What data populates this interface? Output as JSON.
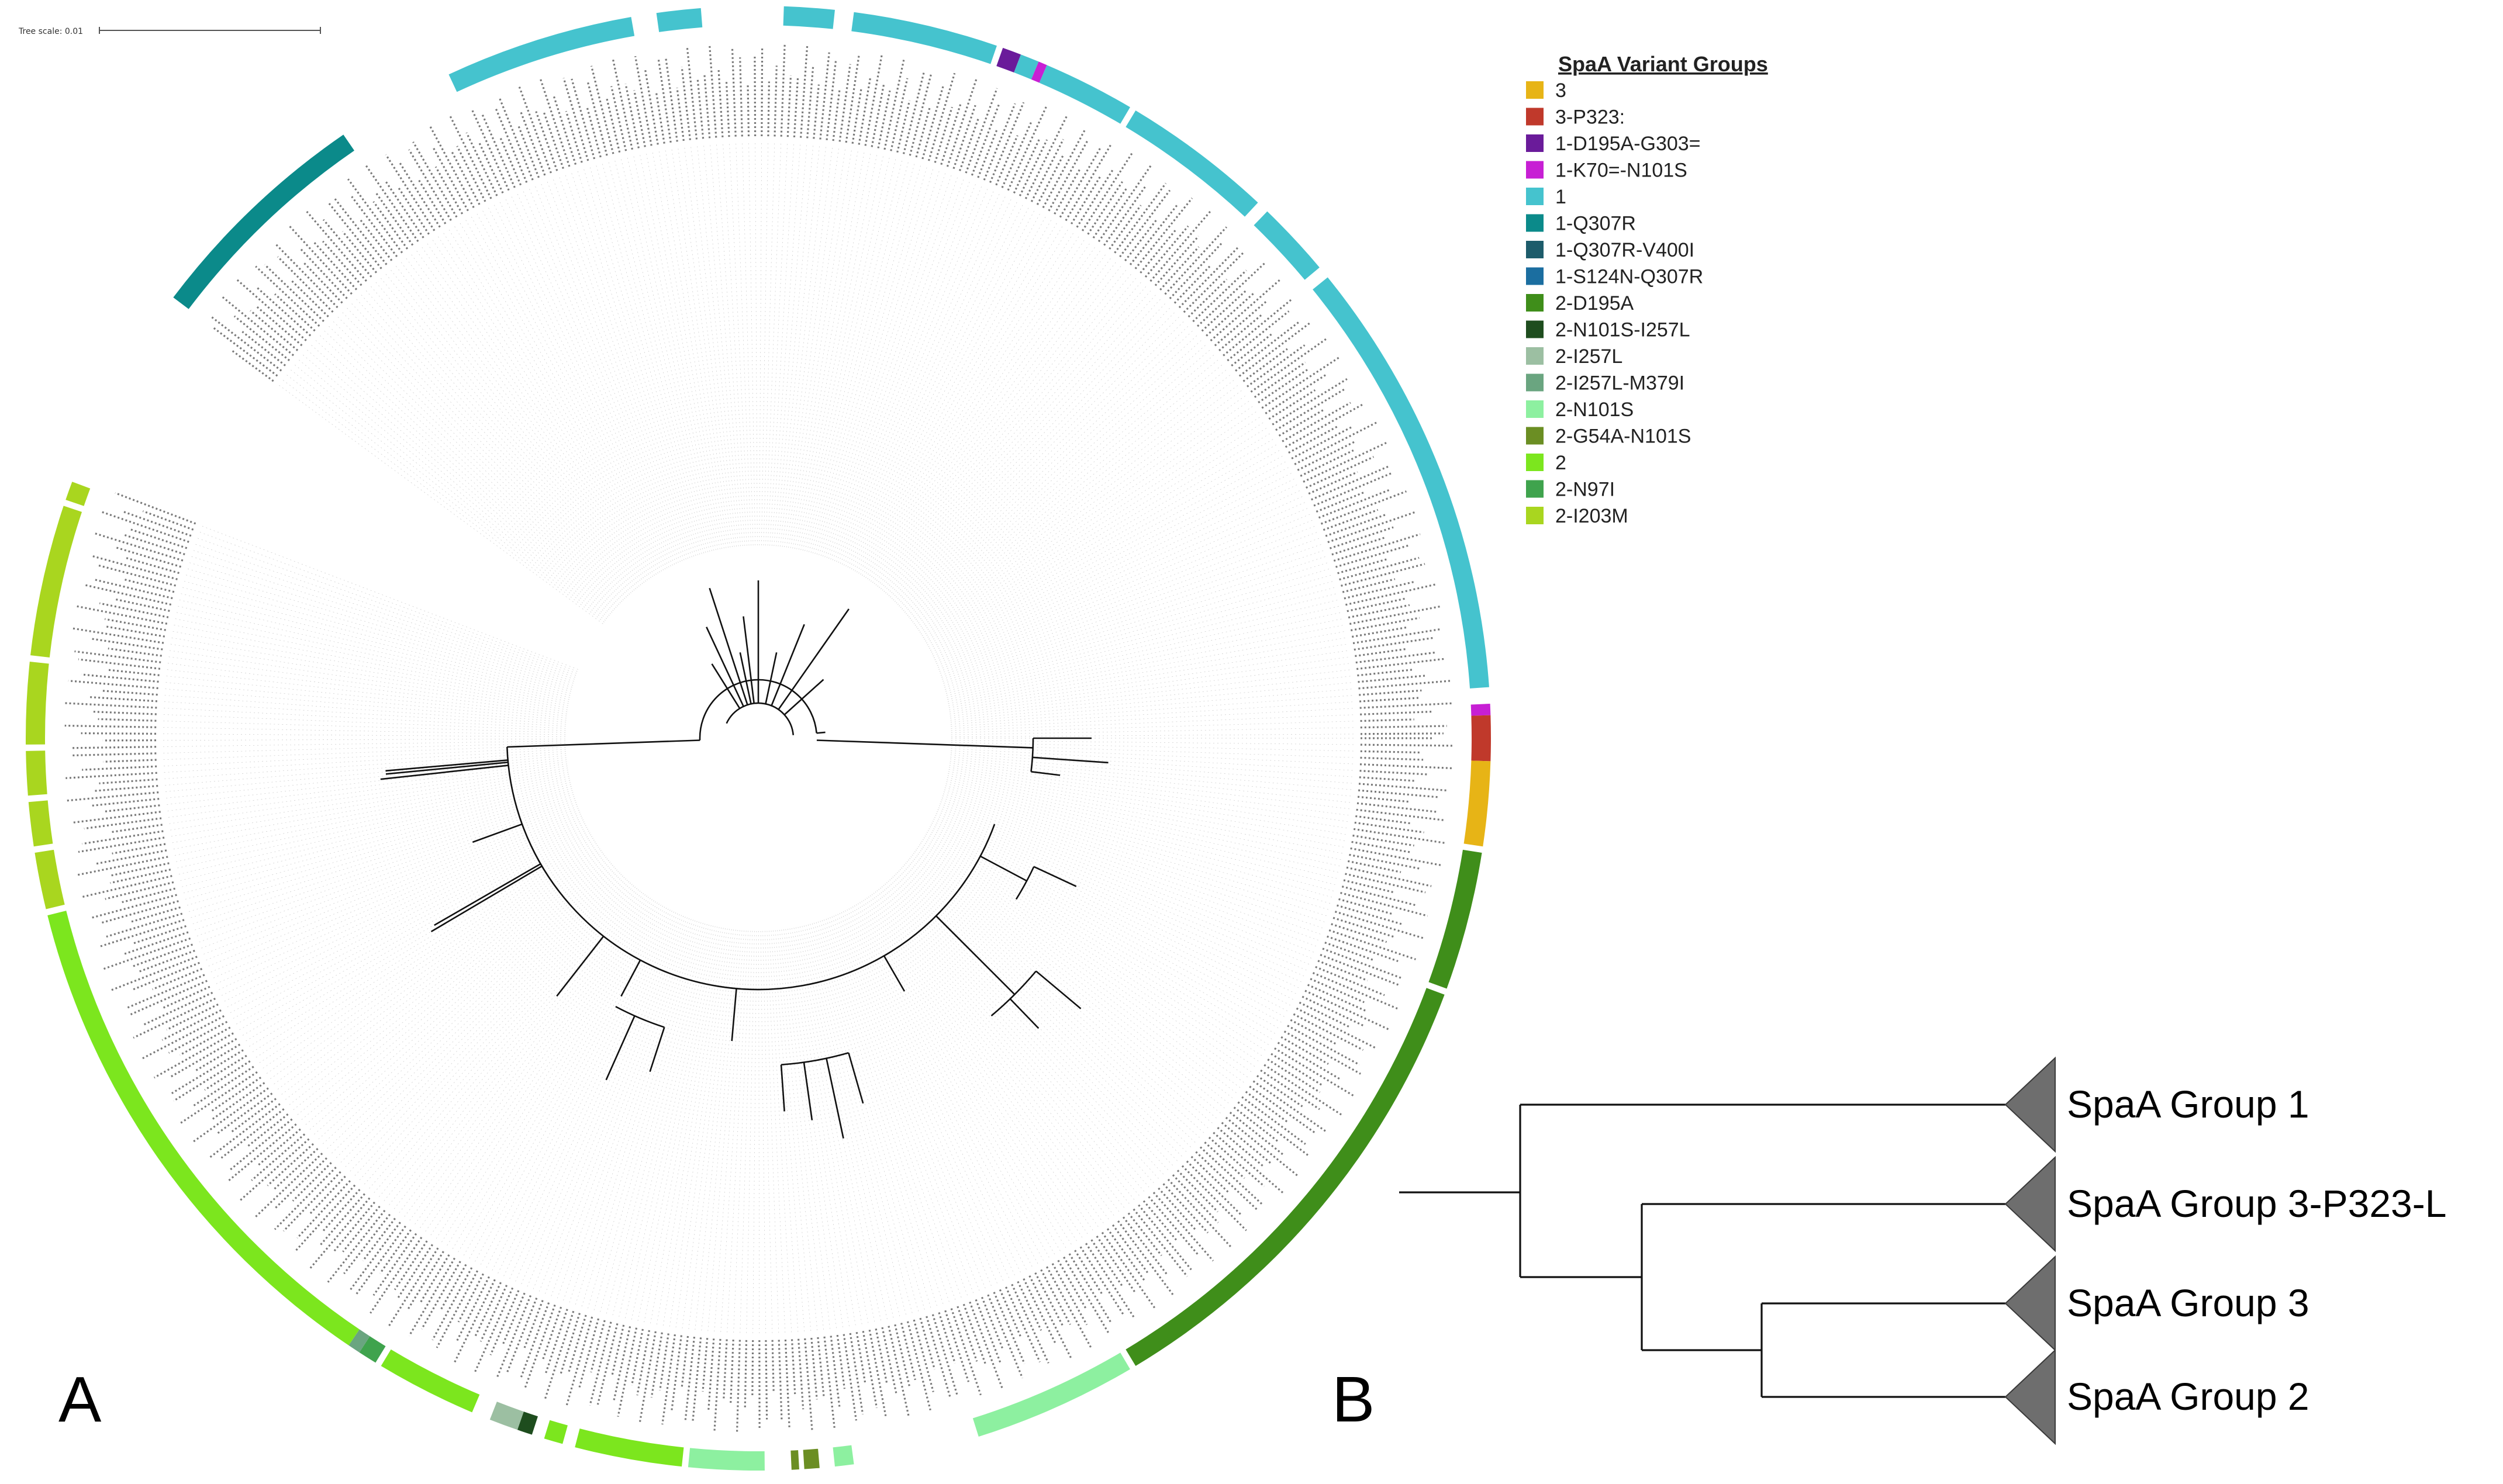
{
  "scale": {
    "label": "Tree scale: 0.01"
  },
  "panels": {
    "a_label": "A",
    "b_label": "B"
  },
  "legend": {
    "title": "SpaA Variant Groups",
    "items": [
      {
        "label": "3",
        "color": "#E7B416"
      },
      {
        "label": "3-P323:",
        "color": "#C0392B"
      },
      {
        "label": "1-D195A-G303=",
        "color": "#6A1B9A"
      },
      {
        "label": "1-K70=-N101S",
        "color": "#C71FD4"
      },
      {
        "label": "1",
        "color": "#45C3CE"
      },
      {
        "label": "1-Q307R",
        "color": "#0B8A8A"
      },
      {
        "label": "1-Q307R-V400I",
        "color": "#1D5C6B"
      },
      {
        "label": "1-S124N-Q307R",
        "color": "#1B6EA0"
      },
      {
        "label": "2-D195A",
        "color": "#3F8E1A"
      },
      {
        "label": "2-N101S-I257L",
        "color": "#1E4D1E"
      },
      {
        "label": "2-I257L",
        "color": "#9CBFA2"
      },
      {
        "label": "2-I257L-M379I",
        "color": "#6AA580"
      },
      {
        "label": "2-N101S",
        "color": "#8DF0A0"
      },
      {
        "label": "2-G54A-N101S",
        "color": "#6B8E23"
      },
      {
        "label": "2",
        "color": "#7CE61E"
      },
      {
        "label": "2-N97I",
        "color": "#3FA34D"
      },
      {
        "label": "2-I203M",
        "color": "#A9D61F"
      }
    ]
  },
  "panel_b": {
    "clades": [
      {
        "label": "SpaA Group 1"
      },
      {
        "label": "SpaA Group 3-P323-L"
      },
      {
        "label": "SpaA Group 3"
      },
      {
        "label": "SpaA Group 2"
      }
    ]
  },
  "ring_sectors": [
    {
      "group": "1",
      "start": 272,
      "end": 276
    },
    {
      "group": "1",
      "start": 277.5,
      "end": 289
    },
    {
      "group": "1-D195A-G303=",
      "start": 289.5,
      "end": 291
    },
    {
      "group": "1",
      "start": 291,
      "end": 292.5
    },
    {
      "group": "1-K70=-N101S",
      "start": 292.5,
      "end": 293.2
    },
    {
      "group": "1",
      "start": 293.2,
      "end": 300.5
    },
    {
      "group": "1",
      "start": 301,
      "end": 313
    },
    {
      "group": "1",
      "start": 314,
      "end": 320
    },
    {
      "group": "1",
      "start": 321,
      "end": 356
    },
    {
      "group": "1-K70=-N101S",
      "start": 357.3,
      "end": 358.2
    },
    {
      "group": "3-P323:",
      "start": 358.2,
      "end": 1.8
    },
    {
      "group": "3",
      "start": 1.8,
      "end": 8.5
    },
    {
      "group": "2-D195A",
      "start": 9,
      "end": 20
    },
    {
      "group": "2-D195A",
      "start": 20.5,
      "end": 59
    },
    {
      "group": "2-N101S",
      "start": 59.5,
      "end": 72.5
    },
    {
      "group": "2-N101S",
      "start": 82.5,
      "end": 84
    },
    {
      "group": "2-G54A-N101S",
      "start": 85.2,
      "end": 86.4
    },
    {
      "group": "2-G54A-N101S",
      "start": 86.8,
      "end": 87.4
    },
    {
      "group": "2-N101S",
      "start": 89.5,
      "end": 95.5
    },
    {
      "group": "2",
      "start": 96,
      "end": 104.5
    },
    {
      "group": "2",
      "start": 105.5,
      "end": 107
    },
    {
      "group": "2-N101S-I257L",
      "start": 108,
      "end": 109.2
    },
    {
      "group": "2-I257L",
      "start": 109.2,
      "end": 111.5
    },
    {
      "group": "2",
      "start": 113,
      "end": 121
    },
    {
      "group": "2-N97I",
      "start": 121.5,
      "end": 123
    },
    {
      "group": "2-I257L-M379I",
      "start": 123,
      "end": 124
    },
    {
      "group": "2",
      "start": 124,
      "end": 166
    },
    {
      "group": "2-I203M",
      "start": 166.5,
      "end": 171
    },
    {
      "group": "2-I203M",
      "start": 171.5,
      "end": 175
    },
    {
      "group": "2-I203M",
      "start": 175.5,
      "end": 179
    },
    {
      "group": "2-I203M",
      "start": 179.5,
      "end": 186
    },
    {
      "group": "2-I203M",
      "start": 186.5,
      "end": 198.5
    },
    {
      "group": "2-I203M",
      "start": 199,
      "end": 200.5
    },
    {
      "group": "1-Q307R",
      "start": 217,
      "end": 235.5
    },
    {
      "group": "1",
      "start": 245,
      "end": 260
    },
    {
      "group": "1",
      "start": 262,
      "end": 265.5
    }
  ]
}
